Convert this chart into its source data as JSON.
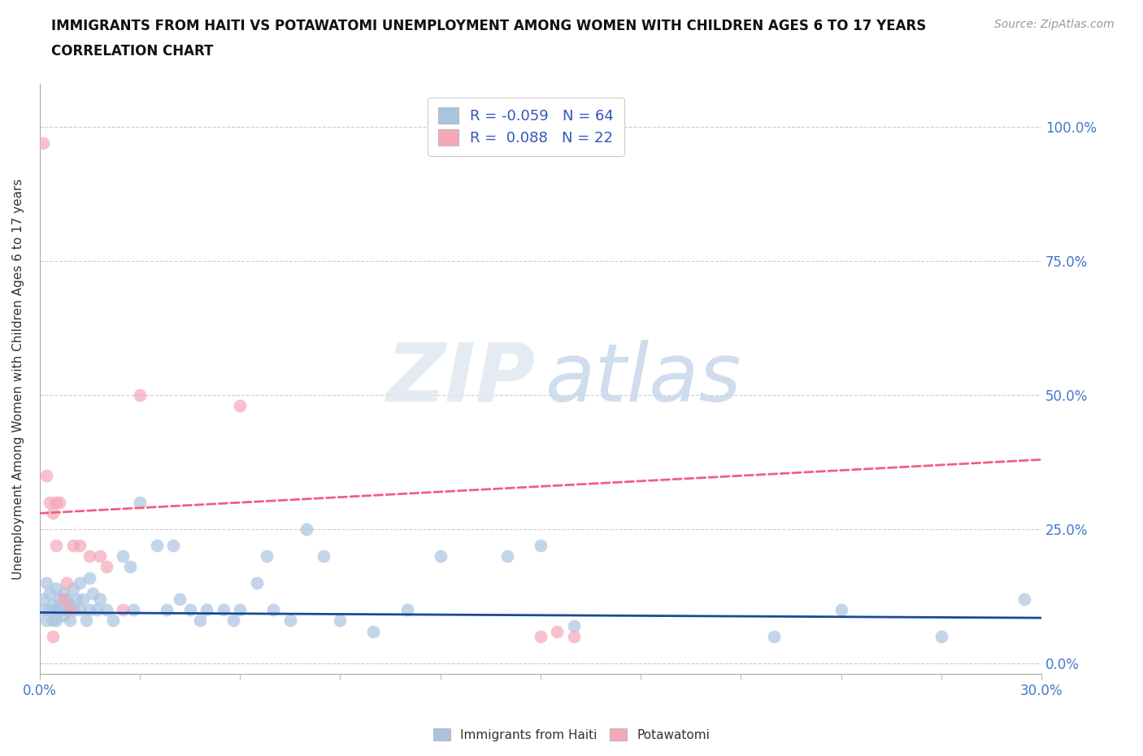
{
  "title_line1": "IMMIGRANTS FROM HAITI VS POTAWATOMI UNEMPLOYMENT AMONG WOMEN WITH CHILDREN AGES 6 TO 17 YEARS",
  "title_line2": "CORRELATION CHART",
  "source_text": "Source: ZipAtlas.com",
  "ylabel": "Unemployment Among Women with Children Ages 6 to 17 years",
  "xlim": [
    0.0,
    0.3
  ],
  "ylim": [
    -0.02,
    1.08
  ],
  "ytick_vals": [
    0.0,
    0.25,
    0.5,
    0.75,
    1.0
  ],
  "xtick_vals": [
    0.0,
    0.03,
    0.06,
    0.09,
    0.12,
    0.15,
    0.18,
    0.21,
    0.24,
    0.27,
    0.3
  ],
  "haiti_color": "#aac4e0",
  "potawatomi_color": "#f4a8b8",
  "haiti_line_color": "#1a4a99",
  "potawatomi_line_color": "#f06080",
  "haiti_R": -0.059,
  "haiti_N": 64,
  "potawatomi_R": 0.088,
  "potawatomi_N": 22,
  "background_color": "#ffffff",
  "haiti_scatter_x": [
    0.001,
    0.001,
    0.002,
    0.002,
    0.003,
    0.003,
    0.004,
    0.004,
    0.005,
    0.005,
    0.005,
    0.006,
    0.006,
    0.007,
    0.007,
    0.008,
    0.008,
    0.009,
    0.009,
    0.01,
    0.01,
    0.011,
    0.012,
    0.012,
    0.013,
    0.014,
    0.015,
    0.015,
    0.016,
    0.017,
    0.018,
    0.02,
    0.022,
    0.025,
    0.027,
    0.028,
    0.03,
    0.035,
    0.038,
    0.04,
    0.042,
    0.045,
    0.048,
    0.05,
    0.055,
    0.058,
    0.06,
    0.065,
    0.068,
    0.07,
    0.075,
    0.08,
    0.085,
    0.09,
    0.1,
    0.11,
    0.12,
    0.14,
    0.15,
    0.16,
    0.22,
    0.24,
    0.27,
    0.295
  ],
  "haiti_scatter_y": [
    0.1,
    0.12,
    0.08,
    0.15,
    0.1,
    0.13,
    0.08,
    0.11,
    0.1,
    0.14,
    0.08,
    0.1,
    0.12,
    0.09,
    0.13,
    0.1,
    0.12,
    0.08,
    0.11,
    0.1,
    0.14,
    0.12,
    0.1,
    0.15,
    0.12,
    0.08,
    0.16,
    0.1,
    0.13,
    0.1,
    0.12,
    0.1,
    0.08,
    0.2,
    0.18,
    0.1,
    0.3,
    0.22,
    0.1,
    0.22,
    0.12,
    0.1,
    0.08,
    0.1,
    0.1,
    0.08,
    0.1,
    0.15,
    0.2,
    0.1,
    0.08,
    0.25,
    0.2,
    0.08,
    0.06,
    0.1,
    0.2,
    0.2,
    0.22,
    0.07,
    0.05,
    0.1,
    0.05,
    0.12
  ],
  "potawatomi_scatter_x": [
    0.001,
    0.002,
    0.003,
    0.004,
    0.004,
    0.005,
    0.005,
    0.006,
    0.007,
    0.008,
    0.009,
    0.01,
    0.012,
    0.015,
    0.018,
    0.02,
    0.025,
    0.03,
    0.06,
    0.15,
    0.155,
    0.16
  ],
  "potawatomi_scatter_y": [
    0.97,
    0.35,
    0.3,
    0.05,
    0.28,
    0.3,
    0.22,
    0.3,
    0.12,
    0.15,
    0.1,
    0.22,
    0.22,
    0.2,
    0.2,
    0.18,
    0.1,
    0.5,
    0.48,
    0.05,
    0.06,
    0.05
  ]
}
